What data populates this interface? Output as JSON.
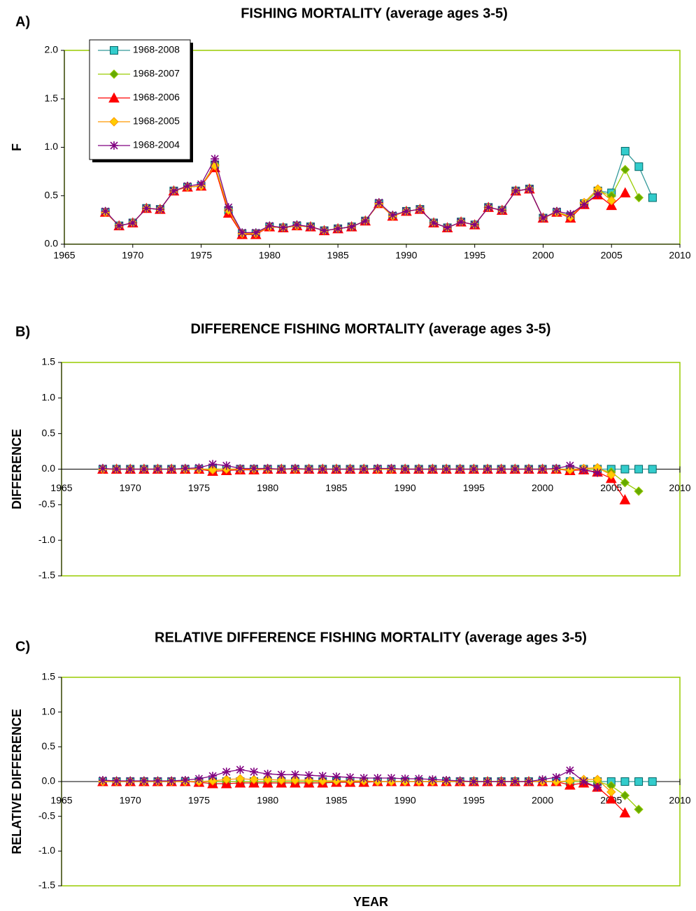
{
  "chart_data": [
    {
      "type": "line",
      "panel_label": "A)",
      "title": "FISHING MORTALITY (average ages 3-5)",
      "y_label": "F",
      "legend": "top-left",
      "x": [
        1968,
        1969,
        1970,
        1971,
        1972,
        1973,
        1974,
        1975,
        1976,
        1977,
        1978,
        1979,
        1980,
        1981,
        1982,
        1983,
        1984,
        1985,
        1986,
        1987,
        1988,
        1989,
        1990,
        1991,
        1992,
        1993,
        1994,
        1995,
        1996,
        1997,
        1998,
        1999,
        2000,
        2001,
        2002,
        2003,
        2004,
        2005,
        2006,
        2007,
        2008
      ],
      "xlim": [
        1965,
        2010
      ],
      "xticks": [
        1965,
        1970,
        1975,
        1980,
        1985,
        1990,
        1995,
        2000,
        2005,
        2010
      ],
      "ylim": [
        0,
        2
      ],
      "yticks": [
        {
          "value": 0,
          "label": "0.0"
        },
        0.5,
        {
          "value": 1,
          "label": "1.0"
        },
        1.5,
        {
          "value": 2,
          "label": "2.0"
        }
      ],
      "series": [
        {
          "name": "1968-2008",
          "marker": "square",
          "color": "#339999",
          "fill": "#33CCCC",
          "values": [
            0.33,
            0.19,
            0.22,
            0.37,
            0.36,
            0.55,
            0.59,
            0.6,
            0.82,
            0.35,
            0.11,
            0.11,
            0.18,
            0.17,
            0.19,
            0.18,
            0.14,
            0.16,
            0.18,
            0.24,
            0.42,
            0.29,
            0.34,
            0.36,
            0.22,
            0.17,
            0.23,
            0.2,
            0.38,
            0.35,
            0.55,
            0.57,
            0.27,
            0.33,
            0.29,
            0.42,
            0.55,
            0.53,
            0.96,
            0.8,
            0.48
          ]
        },
        {
          "name": "1968-2007",
          "marker": "diamond",
          "color": "#99CC00",
          "fill": "#66AA00",
          "values": [
            0.33,
            0.19,
            0.22,
            0.37,
            0.36,
            0.55,
            0.59,
            0.6,
            0.82,
            0.35,
            0.11,
            0.11,
            0.18,
            0.17,
            0.19,
            0.18,
            0.14,
            0.16,
            0.18,
            0.24,
            0.42,
            0.29,
            0.34,
            0.36,
            0.22,
            0.17,
            0.23,
            0.2,
            0.38,
            0.35,
            0.55,
            0.57,
            0.27,
            0.33,
            0.29,
            0.42,
            0.55,
            0.5,
            0.77,
            0.48,
            null
          ]
        },
        {
          "name": "1968-2006",
          "marker": "triangle",
          "color": "#FF0000",
          "fill": "#FF0000",
          "values": [
            0.33,
            0.19,
            0.22,
            0.37,
            0.36,
            0.55,
            0.59,
            0.6,
            0.79,
            0.32,
            0.1,
            0.1,
            0.18,
            0.17,
            0.19,
            0.18,
            0.14,
            0.16,
            0.18,
            0.24,
            0.42,
            0.29,
            0.34,
            0.36,
            0.22,
            0.17,
            0.23,
            0.2,
            0.38,
            0.35,
            0.55,
            0.57,
            0.27,
            0.33,
            0.27,
            0.41,
            0.51,
            0.4,
            0.53,
            null,
            null
          ]
        },
        {
          "name": "1968-2005",
          "marker": "diamond",
          "color": "#FF9900",
          "fill": "#FFCC00",
          "values": [
            0.33,
            0.19,
            0.22,
            0.37,
            0.36,
            0.55,
            0.59,
            0.6,
            0.81,
            0.35,
            0.11,
            0.11,
            0.18,
            0.17,
            0.19,
            0.18,
            0.14,
            0.16,
            0.18,
            0.24,
            0.42,
            0.29,
            0.34,
            0.36,
            0.22,
            0.17,
            0.23,
            0.2,
            0.38,
            0.35,
            0.55,
            0.57,
            0.27,
            0.33,
            0.28,
            0.43,
            0.57,
            0.45,
            null,
            null,
            null
          ]
        },
        {
          "name": "1968-2004",
          "marker": "asterisk",
          "color": "#800080",
          "fill": "#800080",
          "values": [
            0.34,
            0.19,
            0.22,
            0.37,
            0.36,
            0.55,
            0.6,
            0.62,
            0.88,
            0.38,
            0.12,
            0.12,
            0.19,
            0.17,
            0.2,
            0.18,
            0.14,
            0.16,
            0.18,
            0.24,
            0.43,
            0.3,
            0.34,
            0.36,
            0.22,
            0.17,
            0.23,
            0.2,
            0.38,
            0.35,
            0.55,
            0.57,
            0.27,
            0.34,
            0.31,
            0.41,
            0.52,
            null,
            null,
            null,
            null
          ]
        }
      ]
    },
    {
      "type": "line",
      "panel_label": "B)",
      "title": "DIFFERENCE FISHING MORTALITY (average ages 3-5)",
      "y_label": "DIFFERENCE",
      "x": [
        1968,
        1969,
        1970,
        1971,
        1972,
        1973,
        1974,
        1975,
        1976,
        1977,
        1978,
        1979,
        1980,
        1981,
        1982,
        1983,
        1984,
        1985,
        1986,
        1987,
        1988,
        1989,
        1990,
        1991,
        1992,
        1993,
        1994,
        1995,
        1996,
        1997,
        1998,
        1999,
        2000,
        2001,
        2002,
        2003,
        2004,
        2005,
        2006,
        2007,
        2008
      ],
      "xlim": [
        1965,
        2010
      ],
      "xticks": [
        1965,
        1970,
        1975,
        1980,
        1985,
        1990,
        1995,
        2000,
        2005,
        2010
      ],
      "ylim": [
        -1.5,
        1.5
      ],
      "yticks": [
        -1.5,
        {
          "value": -1,
          "label": "-1.0"
        },
        -0.5,
        {
          "value": 0,
          "label": "0.0"
        },
        0.5,
        {
          "value": 1,
          "label": "1.0"
        },
        1.5
      ],
      "series": [
        {
          "marker": "square",
          "color": "#339999",
          "fill": "#33CCCC",
          "values": [
            0,
            0,
            0,
            0,
            0,
            0,
            0,
            0,
            0,
            0,
            0,
            0,
            0,
            0,
            0,
            0,
            0,
            0,
            0,
            0,
            0,
            0,
            0,
            0,
            0,
            0,
            0,
            0,
            0,
            0,
            0,
            0,
            0,
            0,
            0,
            0,
            0,
            0,
            0,
            0,
            0
          ]
        },
        {
          "marker": "diamond",
          "color": "#99CC00",
          "fill": "#66AA00",
          "values": [
            0,
            0,
            0,
            0,
            0,
            0,
            0,
            0,
            0,
            0,
            0,
            0,
            0,
            0,
            0,
            0,
            0,
            0,
            0,
            0,
            0,
            0,
            0,
            0,
            0,
            0,
            0,
            0,
            0,
            0,
            0,
            0,
            0,
            0,
            0,
            0,
            0,
            -0.04,
            -0.19,
            -0.31,
            null
          ]
        },
        {
          "marker": "triangle",
          "color": "#FF0000",
          "fill": "#FF0000",
          "values": [
            0,
            0,
            0,
            0,
            0,
            0,
            0,
            0,
            -0.03,
            -0.02,
            -0.01,
            -0.01,
            0,
            0,
            0,
            0,
            0,
            0,
            0,
            0,
            0,
            0,
            0,
            0,
            0,
            0,
            0,
            0,
            0,
            0,
            0,
            0,
            0,
            0,
            -0.02,
            -0.01,
            -0.04,
            -0.13,
            -0.43,
            null,
            null
          ]
        },
        {
          "marker": "diamond",
          "color": "#FF9900",
          "fill": "#FFCC00",
          "values": [
            0,
            0,
            0,
            0,
            0,
            0,
            0,
            0,
            -0.01,
            0,
            0,
            0,
            0,
            0,
            0,
            0,
            0,
            0,
            0,
            0,
            0,
            0,
            0,
            0,
            0,
            0,
            0,
            0,
            0,
            0,
            0,
            0,
            0,
            0,
            -0.01,
            0.01,
            0.02,
            -0.08,
            null,
            null,
            null
          ]
        },
        {
          "marker": "asterisk",
          "color": "#800080",
          "fill": "#800080",
          "values": [
            0.01,
            0,
            0,
            0,
            0,
            0,
            0.01,
            0.02,
            0.07,
            0.05,
            0.01,
            0.01,
            0.01,
            0,
            0.01,
            0,
            0,
            0,
            0,
            0,
            0.01,
            0.01,
            0,
            0,
            0,
            0,
            0,
            0,
            0,
            0,
            0,
            0,
            0,
            0.01,
            0.05,
            -0.01,
            -0.05,
            null,
            null,
            null,
            null
          ]
        }
      ]
    },
    {
      "type": "line",
      "panel_label": "C)",
      "title": "RELATIVE DIFFERENCE FISHING MORTALITY (average ages 3-5)",
      "y_label": "RELATIVE DIFFERENCE",
      "x_label": "YEAR",
      "x": [
        1968,
        1969,
        1970,
        1971,
        1972,
        1973,
        1974,
        1975,
        1976,
        1977,
        1978,
        1979,
        1980,
        1981,
        1982,
        1983,
        1984,
        1985,
        1986,
        1987,
        1988,
        1989,
        1990,
        1991,
        1992,
        1993,
        1994,
        1995,
        1996,
        1997,
        1998,
        1999,
        2000,
        2001,
        2002,
        2003,
        2004,
        2005,
        2006,
        2007,
        2008
      ],
      "xlim": [
        1965,
        2010
      ],
      "xticks": [
        1965,
        1970,
        1975,
        1980,
        1985,
        1990,
        1995,
        2000,
        2005,
        2010
      ],
      "ylim": [
        -1.5,
        1.5
      ],
      "yticks": [
        -1.5,
        {
          "value": -1,
          "label": "-1.0"
        },
        -0.5,
        {
          "value": 0,
          "label": "0.0"
        },
        0.5,
        {
          "value": 1,
          "label": "1.0"
        },
        1.5
      ],
      "series": [
        {
          "marker": "square",
          "color": "#339999",
          "fill": "#33CCCC",
          "values": [
            0,
            0,
            0,
            0,
            0,
            0,
            0,
            0,
            0,
            0,
            0,
            0,
            0,
            0,
            0,
            0,
            0,
            0,
            0,
            0,
            0,
            0,
            0,
            0,
            0,
            0,
            0,
            0,
            0,
            0,
            0,
            0,
            0,
            0,
            0,
            0,
            0,
            0,
            0,
            0,
            0
          ]
        },
        {
          "marker": "diamond",
          "color": "#99CC00",
          "fill": "#66AA00",
          "values": [
            0,
            0,
            0,
            0,
            0,
            0,
            0,
            0,
            0,
            0,
            0,
            0,
            0,
            0,
            0,
            0,
            0,
            0,
            0,
            0,
            0,
            0,
            0,
            0,
            0,
            0,
            0,
            0,
            0,
            0,
            0,
            0,
            0,
            0,
            0,
            0,
            0,
            -0.06,
            -0.2,
            -0.4,
            null
          ]
        },
        {
          "marker": "triangle",
          "color": "#FF0000",
          "fill": "#FF0000",
          "values": [
            0,
            0,
            0,
            0,
            0,
            0,
            0,
            -0.01,
            -0.03,
            -0.03,
            -0.02,
            -0.02,
            -0.02,
            -0.02,
            -0.02,
            -0.02,
            -0.02,
            -0.01,
            -0.01,
            -0.01,
            0,
            0,
            0,
            0,
            0,
            0,
            0,
            0,
            0,
            0,
            0,
            0,
            0,
            0,
            -0.05,
            -0.02,
            -0.08,
            -0.25,
            -0.45,
            null,
            null
          ]
        },
        {
          "marker": "diamond",
          "color": "#FF9900",
          "fill": "#FFCC00",
          "values": [
            0,
            0,
            0,
            0,
            0,
            0,
            0,
            0,
            0.01,
            0.03,
            0.04,
            0.03,
            0.03,
            0.02,
            0.02,
            0.02,
            0.01,
            0.01,
            0.01,
            0.01,
            0,
            0,
            0,
            0,
            0,
            0,
            0,
            0,
            0,
            0,
            0,
            0,
            0,
            0,
            0.01,
            0.03,
            0.03,
            -0.15,
            null,
            null,
            null
          ]
        },
        {
          "marker": "asterisk",
          "color": "#800080",
          "fill": "#800080",
          "values": [
            0.02,
            0.01,
            0.01,
            0.01,
            0.01,
            0.01,
            0.02,
            0.04,
            0.08,
            0.14,
            0.17,
            0.14,
            0.11,
            0.1,
            0.1,
            0.09,
            0.08,
            0.07,
            0.06,
            0.05,
            0.05,
            0.05,
            0.04,
            0.04,
            0.03,
            0.02,
            0.01,
            0,
            0,
            0,
            0,
            0,
            0.03,
            0.06,
            0.16,
            0,
            -0.08,
            null,
            null,
            null,
            null
          ]
        }
      ]
    }
  ]
}
